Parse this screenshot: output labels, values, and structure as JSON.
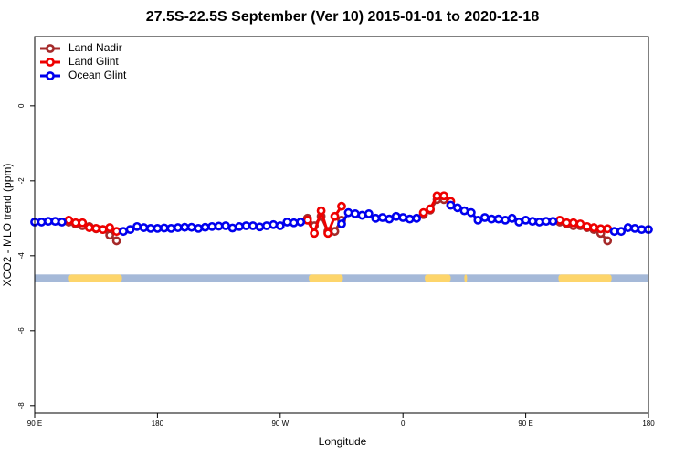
{
  "chart_data": {
    "type": "line",
    "title": "27.5S-22.5S September (Ver 10)   2015-01-01 to 2020-12-18",
    "x_label": "Longitude",
    "y_label": "XCO2 - MLO trend (ppm)",
    "xlim": [
      90,
      540
    ],
    "ylim": [
      -8.2,
      1.85
    ],
    "xticks": [
      {
        "value": 90,
        "label": "90 E"
      },
      {
        "value": 180,
        "label": "180"
      },
      {
        "value": 270,
        "label": "90 W"
      },
      {
        "value": 360,
        "label": "0"
      },
      {
        "value": 450,
        "label": "90 E"
      },
      {
        "value": 540,
        "label": "180"
      }
    ],
    "yticks": [
      0,
      -2,
      -4,
      -6,
      -8
    ],
    "legend": "top-left",
    "strip": {
      "ylim": [
        -4.7,
        -4.5
      ],
      "ocean_color": "#a5b9d8",
      "land_color": "#fdd56b",
      "land_spans": [
        [
          115,
          154
        ],
        [
          291,
          316
        ],
        [
          376,
          395
        ],
        [
          405,
          407
        ],
        [
          474,
          513
        ]
      ]
    },
    "x": [
      90,
      95,
      100,
      105,
      110,
      115,
      120,
      125,
      130,
      135,
      140,
      145,
      150,
      155,
      160,
      165,
      170,
      175,
      180,
      185,
      190,
      195,
      200,
      205,
      210,
      215,
      220,
      225,
      230,
      235,
      240,
      245,
      250,
      255,
      260,
      265,
      270,
      275,
      280,
      285,
      290,
      295,
      300,
      305,
      310,
      315,
      320,
      325,
      330,
      335,
      340,
      345,
      350,
      355,
      360,
      365,
      370,
      375,
      380,
      385,
      390,
      395,
      400,
      405,
      410,
      415,
      420,
      425,
      430,
      435,
      440,
      445,
      450,
      455,
      460,
      465,
      470,
      475,
      480,
      485,
      490,
      495,
      500,
      505,
      510,
      515,
      520,
      525,
      530,
      535,
      540
    ],
    "series": [
      {
        "name": "Land Nadir",
        "color": "#a52a2a",
        "values": [
          null,
          null,
          null,
          null,
          null,
          -3.1,
          -3.15,
          -3.2,
          -3.22,
          -3.28,
          -3.3,
          -3.45,
          -3.6,
          null,
          null,
          null,
          null,
          null,
          null,
          null,
          null,
          null,
          null,
          null,
          null,
          null,
          null,
          null,
          null,
          null,
          null,
          null,
          null,
          null,
          null,
          null,
          null,
          null,
          null,
          null,
          -3.0,
          -3.2,
          -2.95,
          -3.35,
          -3.35,
          -3.05,
          null,
          null,
          null,
          null,
          null,
          null,
          null,
          null,
          null,
          null,
          null,
          -2.9,
          -2.78,
          -2.5,
          -2.5,
          -2.65,
          null,
          null,
          null,
          null,
          null,
          null,
          null,
          null,
          null,
          null,
          null,
          null,
          null,
          null,
          null,
          -3.1,
          -3.15,
          -3.2,
          -3.2,
          -3.25,
          -3.3,
          -3.4,
          -3.6,
          null,
          null,
          null,
          null,
          null,
          null
        ]
      },
      {
        "name": "Land Glint",
        "color": "#ee0000",
        "values": [
          null,
          null,
          null,
          null,
          null,
          -3.05,
          -3.12,
          -3.12,
          -3.25,
          -3.27,
          -3.3,
          -3.25,
          -3.35,
          null,
          null,
          null,
          null,
          null,
          null,
          null,
          null,
          null,
          null,
          null,
          null,
          null,
          null,
          null,
          null,
          null,
          null,
          null,
          null,
          null,
          null,
          null,
          null,
          null,
          null,
          null,
          -3.05,
          -3.4,
          -2.8,
          -3.4,
          -2.95,
          -2.68,
          null,
          null,
          null,
          null,
          null,
          null,
          null,
          null,
          null,
          null,
          null,
          -2.85,
          -2.75,
          -2.4,
          -2.4,
          -2.55,
          null,
          null,
          null,
          null,
          null,
          null,
          null,
          null,
          null,
          null,
          null,
          null,
          null,
          null,
          null,
          -3.05,
          -3.12,
          -3.12,
          -3.15,
          -3.22,
          -3.25,
          -3.28,
          -3.28,
          null,
          null,
          null,
          null,
          null,
          null
        ]
      },
      {
        "name": "Ocean Glint",
        "color": "#0000ee",
        "values": [
          -3.1,
          -3.1,
          -3.08,
          -3.08,
          -3.1,
          null,
          null,
          null,
          null,
          null,
          null,
          null,
          null,
          -3.35,
          -3.3,
          -3.22,
          -3.25,
          -3.27,
          -3.27,
          -3.26,
          -3.27,
          -3.25,
          -3.24,
          -3.24,
          -3.27,
          -3.24,
          -3.22,
          -3.21,
          -3.2,
          -3.26,
          -3.22,
          -3.2,
          -3.2,
          -3.23,
          -3.2,
          -3.17,
          -3.2,
          -3.1,
          -3.12,
          -3.1,
          null,
          null,
          null,
          null,
          null,
          -3.15,
          -2.85,
          -2.88,
          -2.92,
          -2.88,
          -3.0,
          -2.98,
          -3.02,
          -2.95,
          -2.98,
          -3.02,
          -3.0,
          null,
          null,
          null,
          null,
          -2.65,
          -2.72,
          -2.8,
          -2.85,
          -3.05,
          -2.98,
          -3.02,
          -3.02,
          -3.05,
          -3.0,
          -3.1,
          -3.05,
          -3.08,
          -3.1,
          -3.08,
          -3.08,
          null,
          null,
          null,
          null,
          null,
          null,
          null,
          null,
          -3.35,
          -3.35,
          -3.25,
          -3.27,
          -3.3,
          -3.3
        ]
      }
    ]
  }
}
